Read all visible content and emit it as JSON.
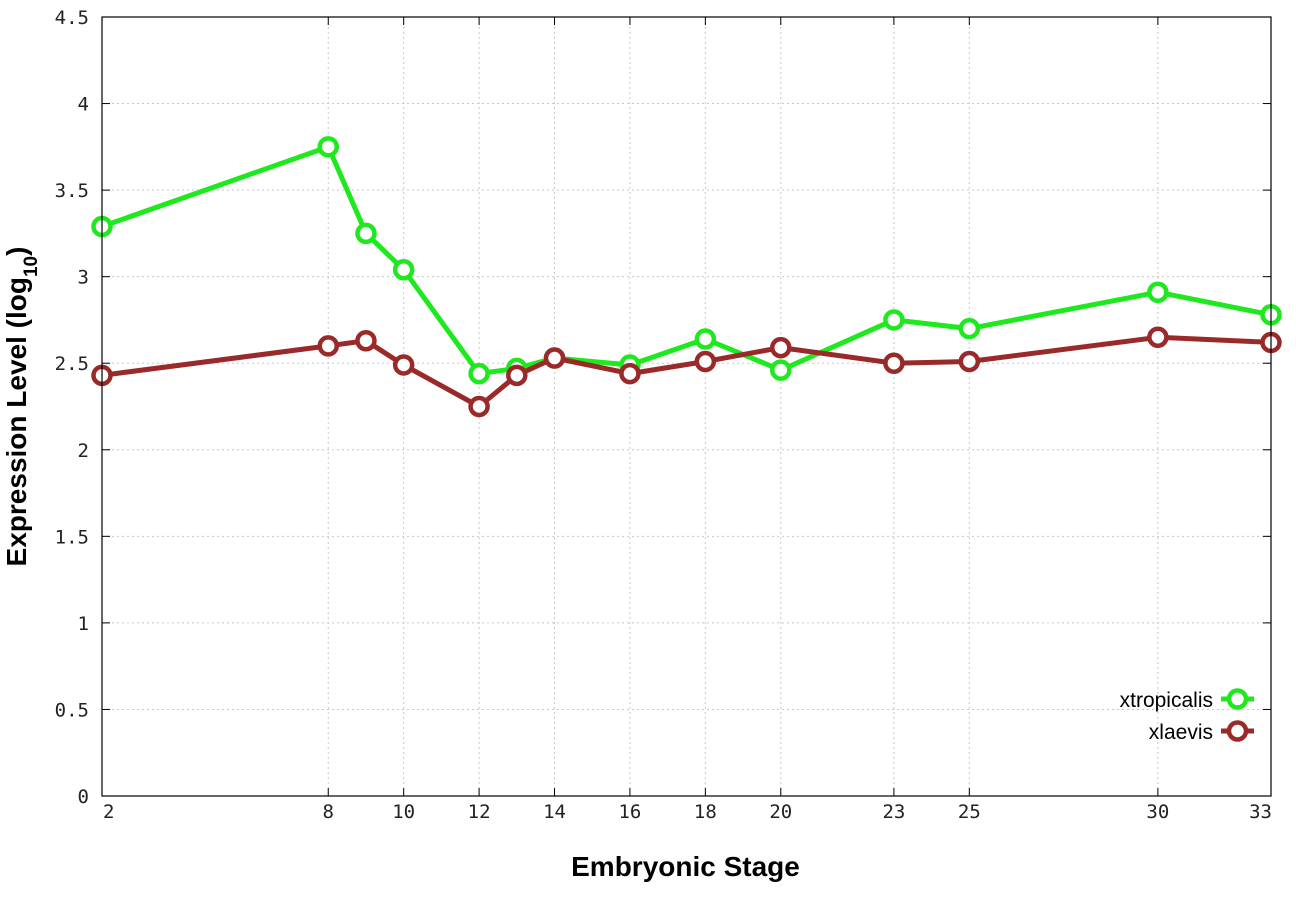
{
  "chart_data": {
    "type": "line",
    "xlabel": "Embryonic Stage",
    "ylabel": "Expression Level (log",
    "ylabel_sub": "10",
    "ylabel_end": ")",
    "xlim": [
      2,
      33
    ],
    "ylim": [
      0,
      4.5
    ],
    "x_ticks": [
      2,
      8,
      10,
      12,
      14,
      16,
      18,
      20,
      23,
      25,
      30,
      33
    ],
    "y_ticks": [
      "0",
      "0.5",
      "1",
      "1.5",
      "2",
      "2.5",
      "3",
      "3.5",
      "4",
      "4.5"
    ],
    "x": [
      2,
      8,
      9,
      10,
      12,
      13,
      14,
      16,
      18,
      20,
      23,
      25,
      30,
      33
    ],
    "grid": true,
    "legend_position": "bottom-right",
    "series": [
      {
        "name": "xtropicalis",
        "color": "#1ee81e",
        "values": [
          3.29,
          3.75,
          3.25,
          3.04,
          2.44,
          2.47,
          2.53,
          2.49,
          2.64,
          2.46,
          2.75,
          2.7,
          2.91,
          2.78
        ]
      },
      {
        "name": "xlaevis",
        "color": "#9a2a2a",
        "values": [
          2.43,
          2.6,
          2.63,
          2.49,
          2.25,
          2.43,
          2.53,
          2.44,
          2.51,
          2.59,
          2.5,
          2.51,
          2.65,
          2.62
        ]
      }
    ]
  }
}
